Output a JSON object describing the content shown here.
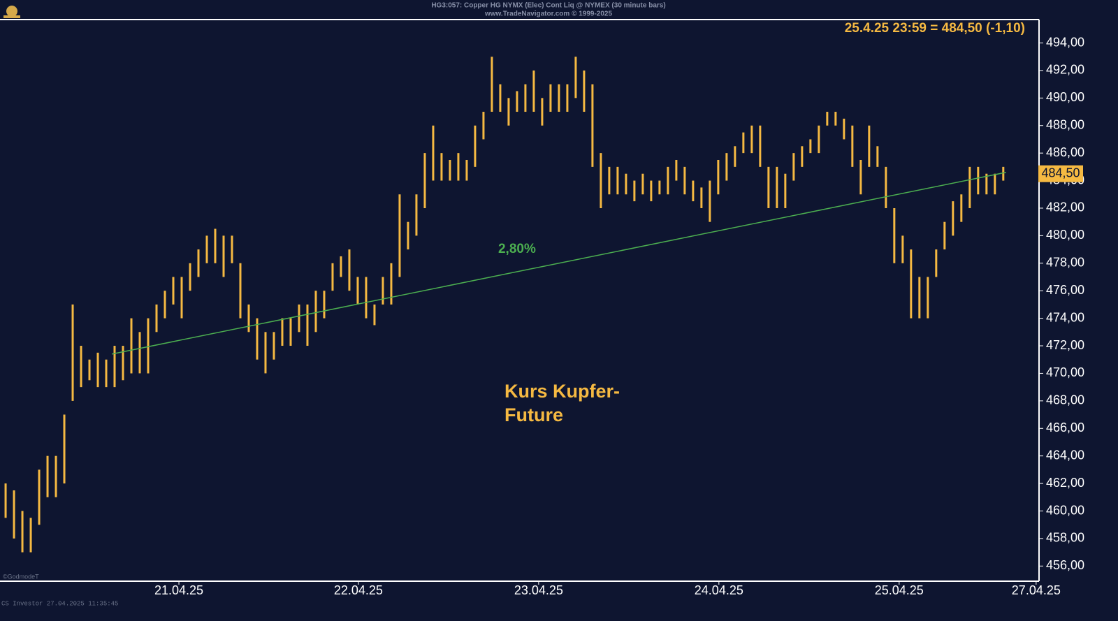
{
  "chart_data": {
    "type": "ohlc",
    "title": "HG3:057: Copper HG NYMX (Elec) Cont Liq @ NYMEX (30 minute bars)",
    "subtitle": "www.TradeNavigator.com © 1999-2025",
    "quote": "25.4.25 23:59 = 484,50 (-1,10)",
    "annotation": [
      "Kurs Kupfer-",
      "Future"
    ],
    "footer": "CS Investor   27.04.2025 11:35:45",
    "watermark": "©GodmodeT",
    "color": "#f5b942",
    "last_price": {
      "value": 484.5,
      "label": "484,50"
    },
    "trendline": {
      "x": [
        12.67,
        119.33
      ],
      "y": [
        471.4,
        484.6
      ],
      "label": "2,80%",
      "color": "#4caf50"
    },
    "xlim": [
      -0.67,
      123.1
    ],
    "xticks": [
      {
        "value": 20.67,
        "label": "21.04.25"
      },
      {
        "value": 42.08,
        "label": "22.04.25"
      },
      {
        "value": 63.58,
        "label": "23.04.25"
      },
      {
        "value": 85.08,
        "label": "24.04.25"
      },
      {
        "value": 106.58,
        "label": "25.04.25"
      },
      {
        "value": 122.92,
        "label": "27.04.25"
      }
    ],
    "ylim": [
      454.9,
      495.7
    ],
    "yticks": [
      {
        "value": 456,
        "label": "456,00"
      },
      {
        "value": 458,
        "label": "458,00"
      },
      {
        "value": 460,
        "label": "460,00"
      },
      {
        "value": 462,
        "label": "462,00"
      },
      {
        "value": 464,
        "label": "464,00"
      },
      {
        "value": 466,
        "label": "466,00"
      },
      {
        "value": 468,
        "label": "468,00"
      },
      {
        "value": 470,
        "label": "470,00"
      },
      {
        "value": 472,
        "label": "472,00"
      },
      {
        "value": 474,
        "label": "474,00"
      },
      {
        "value": 476,
        "label": "476,00"
      },
      {
        "value": 478,
        "label": "478,00"
      },
      {
        "value": 480,
        "label": "480,00"
      },
      {
        "value": 482,
        "label": "482,00"
      },
      {
        "value": 484,
        "label": "484,00"
      },
      {
        "value": 486,
        "label": "486,00"
      },
      {
        "value": 488,
        "label": "488,00"
      },
      {
        "value": 490,
        "label": "490,00"
      },
      {
        "value": 492,
        "label": "492,00"
      },
      {
        "value": 494,
        "label": "494,00"
      }
    ],
    "low": [
      459.5,
      458,
      457,
      457,
      459,
      461,
      461,
      462,
      468,
      469,
      469.5,
      469,
      469,
      469,
      469.5,
      470,
      470,
      470,
      473,
      474,
      475,
      474,
      476,
      477,
      478,
      478,
      477,
      478,
      474,
      473,
      471,
      470,
      471,
      472,
      472,
      473,
      472,
      473,
      474,
      476,
      477,
      476,
      475,
      474,
      473.5,
      475,
      475,
      477,
      479,
      480,
      482,
      484,
      484,
      484,
      484,
      484,
      485,
      487,
      489,
      489,
      488,
      489,
      489,
      489,
      488,
      489,
      489,
      489,
      490,
      489,
      485,
      482,
      483,
      483,
      483,
      482.5,
      483,
      482.5,
      483,
      483,
      484,
      483,
      482.5,
      482,
      481,
      483,
      484,
      485,
      486,
      486,
      485,
      482,
      482,
      482,
      484,
      485,
      486,
      486,
      488,
      488,
      487,
      485,
      483,
      485,
      485,
      482,
      478,
      478,
      474,
      474,
      474,
      477,
      479,
      480,
      481,
      482,
      483,
      483,
      483,
      484
    ],
    "high": [
      462,
      461.5,
      460,
      459.5,
      463,
      464,
      464,
      467,
      475,
      472,
      471,
      471.5,
      471,
      472,
      472,
      474,
      473,
      474,
      475,
      476,
      477,
      477,
      478,
      479,
      480,
      480.5,
      480,
      480,
      478,
      475,
      474,
      473,
      473,
      474,
      474,
      475,
      475,
      476,
      476,
      478,
      478.5,
      479,
      477,
      477,
      475,
      477,
      478,
      483,
      481,
      483,
      486,
      488,
      486,
      485.5,
      486,
      485.5,
      488,
      489,
      493,
      491,
      490,
      490.5,
      491,
      492,
      490,
      491,
      491,
      491,
      493,
      492,
      491,
      486,
      485,
      485,
      484.5,
      484,
      484.5,
      484,
      484,
      485,
      485.5,
      485,
      484,
      483.5,
      484,
      485.5,
      486,
      486.5,
      487.5,
      488,
      488,
      485,
      485,
      484.5,
      486,
      486.5,
      487,
      488,
      489,
      489,
      488.5,
      488,
      485.5,
      488,
      486.5,
      485,
      482,
      480,
      479,
      477,
      477,
      479,
      481,
      482.5,
      483,
      485,
      485,
      484.5,
      484.5,
      485
    ]
  }
}
